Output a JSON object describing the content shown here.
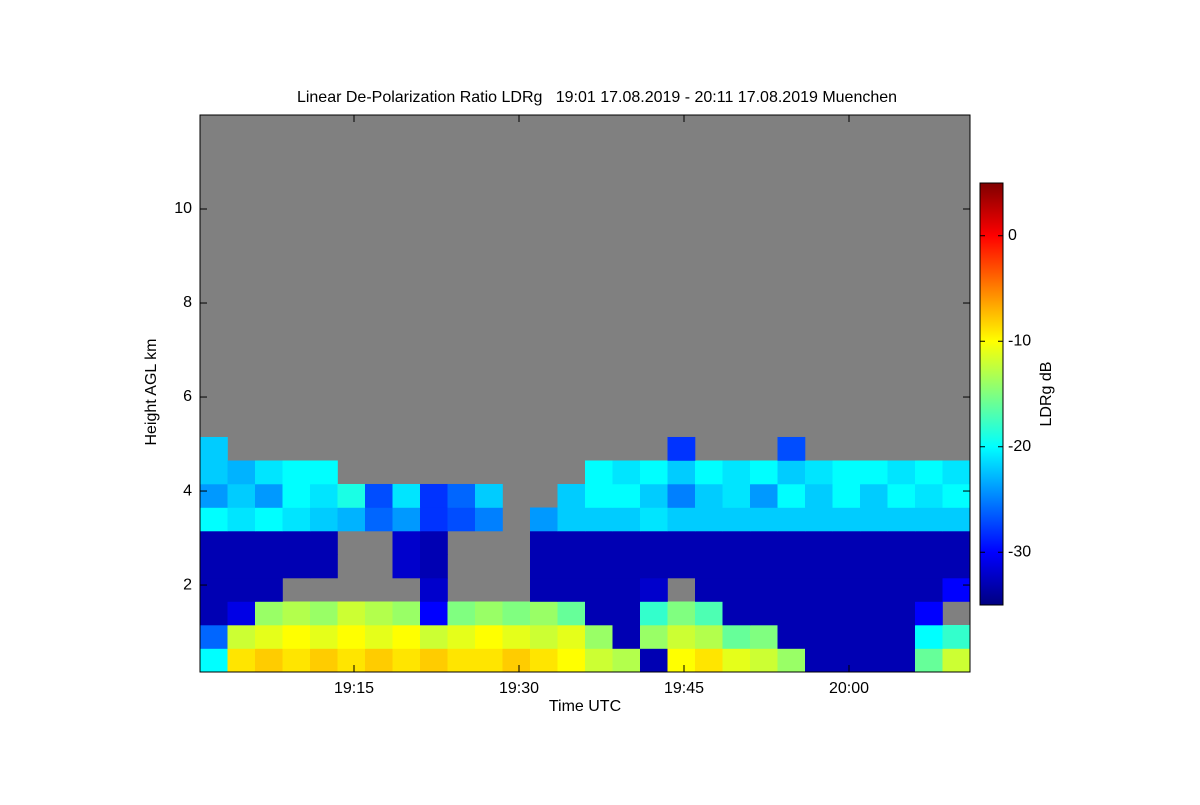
{
  "chart_data": {
    "type": "heatmap",
    "title": "Linear De-Polarization Ratio LDRg   19:01 17.08.2019 - 20:11 17.08.2019 Muenchen",
    "xlabel": "Time UTC",
    "ylabel": "Height AGL km",
    "colorbar_label": "LDRg dB",
    "xlim": [
      1141,
      1211
    ],
    "xticks": [
      {
        "value": 1155,
        "label": "19:15"
      },
      {
        "value": 1170,
        "label": "19:30"
      },
      {
        "value": 1185,
        "label": "19:45"
      },
      {
        "value": 1200,
        "label": "20:00"
      }
    ],
    "ylim": [
      0.15,
      12
    ],
    "yticks": [
      2,
      4,
      6,
      8,
      10
    ],
    "clim": [
      -35,
      5
    ],
    "cticks": [
      -30,
      -20,
      -10,
      0
    ],
    "colormap": "jet",
    "missing_color": "#808080",
    "xbins": [
      1141,
      1143.5,
      1146,
      1148.5,
      1151,
      1153.5,
      1156,
      1158.5,
      1161,
      1163.5,
      1166,
      1168.5,
      1171,
      1173.5,
      1176,
      1178.5,
      1181,
      1183.5,
      1186,
      1188.5,
      1191,
      1193.5,
      1196,
      1198.5,
      1201,
      1203.5,
      1206,
      1208.5,
      1211
    ],
    "ybins": [
      0.15,
      0.65,
      1.15,
      1.65,
      2.15,
      2.65,
      3.15,
      3.65,
      4.15,
      4.65,
      5.15
    ],
    "z": [
      [
        -20,
        -9,
        -8,
        -9,
        -8,
        -9,
        -8,
        -9,
        -8,
        -9,
        -9,
        -8,
        -9,
        -10,
        -12,
        -13,
        -33,
        -10,
        -9,
        -11,
        -12,
        -14,
        -33,
        -33,
        -33,
        -33,
        -16,
        -12
      ],
      [
        -26,
        -12,
        -11,
        -10,
        -11,
        -10,
        -11,
        -10,
        -12,
        -11,
        -10,
        -11,
        -12,
        -11,
        -14,
        -33,
        -14,
        -12,
        -13,
        -16,
        -15,
        -33,
        -33,
        -33,
        -33,
        -33,
        -20,
        -18
      ],
      [
        -33,
        -31,
        -14,
        -13,
        -14,
        -12,
        -13,
        -14,
        -30,
        -15,
        -14,
        -15,
        -14,
        -16,
        -33,
        -33,
        -18,
        -15,
        -17,
        -33,
        -33,
        -33,
        -33,
        -33,
        -33,
        -33,
        -30,
        null
      ],
      [
        -33,
        -33,
        -33,
        null,
        null,
        null,
        null,
        null,
        -32,
        null,
        null,
        null,
        -33,
        -33,
        -33,
        -33,
        -32,
        null,
        -33,
        -33,
        -33,
        -33,
        -33,
        -33,
        -33,
        -33,
        -33,
        -30
      ],
      [
        -33,
        -33,
        -33,
        -33,
        -33,
        null,
        null,
        -32,
        -33,
        null,
        null,
        null,
        -33,
        -33,
        -33,
        -33,
        -33,
        -33,
        -33,
        -33,
        -33,
        -33,
        -33,
        -33,
        -33,
        -33,
        -33,
        -33
      ],
      [
        -33,
        -33,
        -33,
        -33,
        -33,
        null,
        null,
        -32,
        -33,
        null,
        null,
        null,
        -33,
        -33,
        -33,
        -33,
        -33,
        -33,
        -33,
        -33,
        -33,
        -33,
        -33,
        -33,
        -33,
        -33,
        -33,
        -33
      ],
      [
        -20,
        -21,
        -20,
        -21,
        -22,
        -23,
        -26,
        -24,
        -28,
        -27,
        -25,
        null,
        -24,
        -22,
        -22,
        -22,
        -21,
        -22,
        -22,
        -22,
        -22,
        -22,
        -22,
        -22,
        -22,
        -22,
        -22,
        -22
      ],
      [
        -24,
        -22,
        -24,
        -20,
        -21,
        -19,
        -27,
        -21,
        -28,
        -26,
        -22,
        null,
        null,
        -22,
        -20,
        -20,
        -22,
        -25,
        -22,
        -21,
        -24,
        -20,
        -22,
        -20,
        -22,
        -20,
        -21,
        -20
      ],
      [
        -22,
        -23,
        -21,
        -20,
        -20,
        null,
        null,
        null,
        null,
        null,
        null,
        null,
        null,
        null,
        -20,
        -21,
        -20,
        -22,
        -20,
        -21,
        -20,
        -22,
        -21,
        -20,
        -20,
        -21,
        -20,
        -21
      ],
      [
        -22,
        null,
        null,
        null,
        null,
        null,
        null,
        null,
        null,
        null,
        null,
        null,
        null,
        null,
        null,
        null,
        null,
        -28,
        null,
        null,
        null,
        -27,
        null,
        null,
        null,
        null,
        null,
        null
      ]
    ]
  }
}
